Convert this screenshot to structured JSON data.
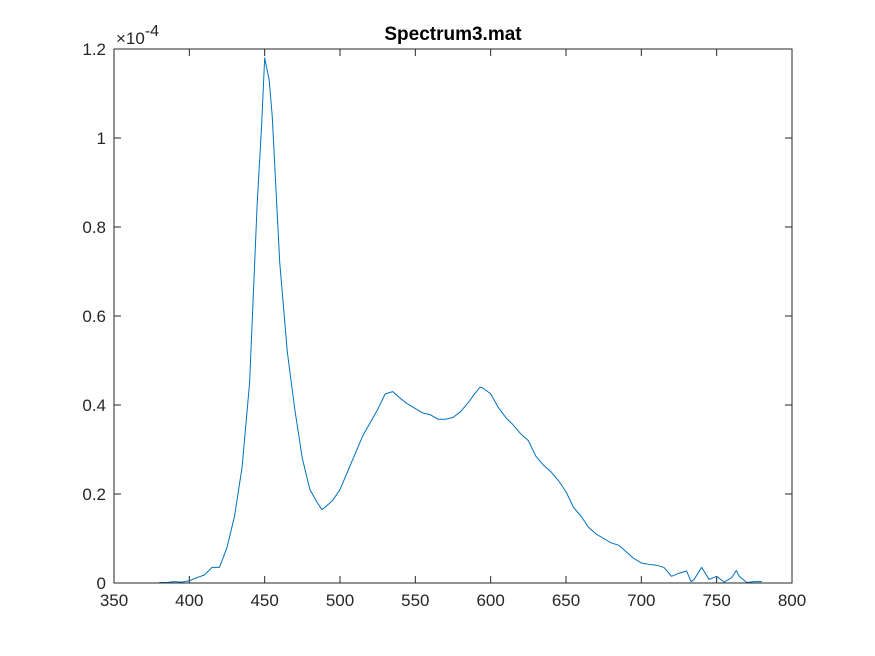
{
  "chart_data": {
    "type": "line",
    "title": "Spectrum3.mat",
    "xlabel": "",
    "ylabel": "",
    "xlim": [
      350,
      800
    ],
    "ylim": [
      0,
      0.00012
    ],
    "x_ticks": [
      "350",
      "400",
      "450",
      "500",
      "550",
      "600",
      "650",
      "700",
      "750",
      "800"
    ],
    "y_ticks": [
      "0",
      "0.2",
      "0.4",
      "0.6",
      "0.8",
      "1",
      "1.2"
    ],
    "y_exponent_base": "×10",
    "y_exponent_power": "-4",
    "y_scale_factor": 0.0001,
    "grid": false,
    "line_color": "#0072BD",
    "series": [
      {
        "x": [
          380,
          385,
          390,
          395,
          400,
          405,
          410,
          415,
          420,
          425,
          430,
          435,
          440,
          445,
          448,
          450,
          453,
          455,
          460,
          465,
          470,
          475,
          480,
          485,
          488,
          490,
          495,
          500,
          505,
          510,
          515,
          520,
          525,
          530,
          535,
          540,
          545,
          550,
          555,
          560,
          565,
          570,
          575,
          580,
          585,
          590,
          593,
          595,
          600,
          605,
          610,
          615,
          620,
          625,
          630,
          635,
          640,
          645,
          650,
          655,
          660,
          665,
          670,
          675,
          680,
          685,
          690,
          695,
          700,
          705,
          710,
          715,
          720,
          725,
          730,
          733,
          735,
          740,
          745,
          750,
          755,
          760,
          763,
          765,
          770,
          775,
          780
        ],
        "y": [
          1e-07,
          1e-07,
          3e-07,
          2e-07,
          5e-07,
          1.2e-06,
          1.8e-06,
          3.5e-06,
          3.5e-06,
          8e-06,
          1.5e-05,
          2.6e-05,
          4.5e-05,
          8.5e-05,
          0.000103,
          0.000118,
          0.000113,
          0.000105,
          7.2e-05,
          5.2e-05,
          3.9e-05,
          2.8e-05,
          2.1e-05,
          1.8e-05,
          1.65e-05,
          1.7e-05,
          1.85e-05,
          2.1e-05,
          2.5e-05,
          2.9e-05,
          3.3e-05,
          3.6e-05,
          3.9e-05,
          4.25e-05,
          4.3e-05,
          4.15e-05,
          4.02e-05,
          3.92e-05,
          3.82e-05,
          3.78e-05,
          3.68e-05,
          3.68e-05,
          3.72e-05,
          3.85e-05,
          4.05e-05,
          4.28e-05,
          4.4e-05,
          4.38e-05,
          4.25e-05,
          3.95e-05,
          3.72e-05,
          3.55e-05,
          3.35e-05,
          3.2e-05,
          2.85e-05,
          2.65e-05,
          2.5e-05,
          2.3e-05,
          2.05e-05,
          1.7e-05,
          1.5e-05,
          1.25e-05,
          1.1e-05,
          1e-05,
          9e-06,
          8.5e-06,
          7e-06,
          5.5e-06,
          4.5e-06,
          4.2e-06,
          4e-06,
          3.5e-06,
          1.5e-06,
          2.2e-06,
          2.7e-06,
          3e-07,
          8e-07,
          3.5e-06,
          8e-07,
          1.5e-06,
          2e-07,
          1.2e-06,
          2.8e-06,
          1.5e-06,
          1e-07,
          3e-07,
          3e-07
        ]
      }
    ]
  }
}
